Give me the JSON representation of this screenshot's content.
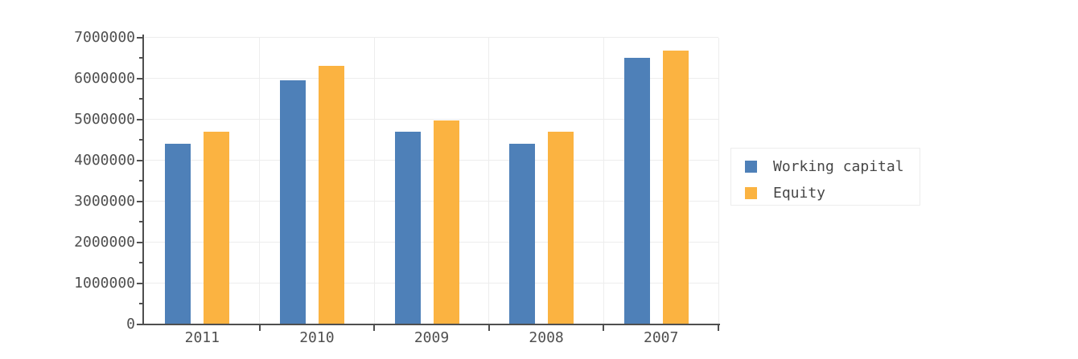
{
  "chart_data": {
    "type": "bar",
    "title": "",
    "xlabel": "",
    "ylabel": "",
    "categories": [
      "2011",
      "2010",
      "2009",
      "2008",
      "2007"
    ],
    "series": [
      {
        "name": "Working capital",
        "color": "#4e80b8",
        "values": [
          4400000,
          5950000,
          4700000,
          4400000,
          6500000
        ]
      },
      {
        "name": "Equity",
        "color": "#fbb341",
        "values": [
          4700000,
          6300000,
          4980000,
          4700000,
          6680000
        ]
      }
    ],
    "ylim": [
      0,
      7000000
    ],
    "ytick_interval": 1000000,
    "minor_tick_interval": 500000,
    "yticklabels": [
      "0",
      "1000000",
      "2000000",
      "3000000",
      "4000000",
      "5000000",
      "6000000",
      "7000000"
    ],
    "grid": true,
    "legend_position": "right"
  },
  "legend": {
    "items": [
      {
        "label": "Working capital",
        "color": "#4e80b8"
      },
      {
        "label": "Equity",
        "color": "#fbb341"
      }
    ]
  },
  "colors": {
    "axis": "#4f4f4f",
    "gridline": "#ededed",
    "text": "#4f4f4f",
    "background": "#ffffff"
  }
}
